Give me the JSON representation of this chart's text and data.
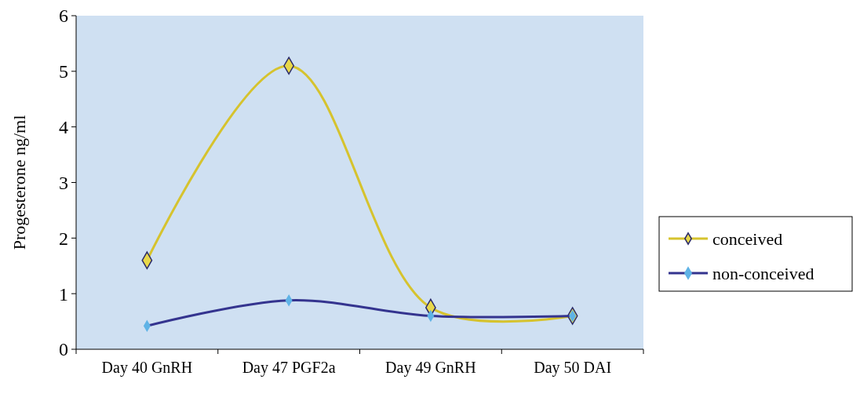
{
  "chart_data": {
    "type": "line",
    "ylabel": "Progesterone ng/ml",
    "categories": [
      "Day 40 GnRH",
      "Day 47 PGF2a",
      "Day 49 GnRH",
      "Day 50 DAI"
    ],
    "series": [
      {
        "name": "conceived",
        "color": "#d6c32e",
        "values": [
          1.6,
          5.1,
          0.75,
          0.6
        ]
      },
      {
        "name": "non-conceived",
        "color": "#34348f",
        "values": [
          0.42,
          0.88,
          0.6,
          0.6
        ]
      }
    ],
    "ylim": [
      0,
      6
    ],
    "yticks": [
      0,
      1,
      2,
      3,
      4,
      5,
      6
    ],
    "marker": "diamond",
    "line_style": "solid",
    "legend": "right",
    "grid": false
  }
}
